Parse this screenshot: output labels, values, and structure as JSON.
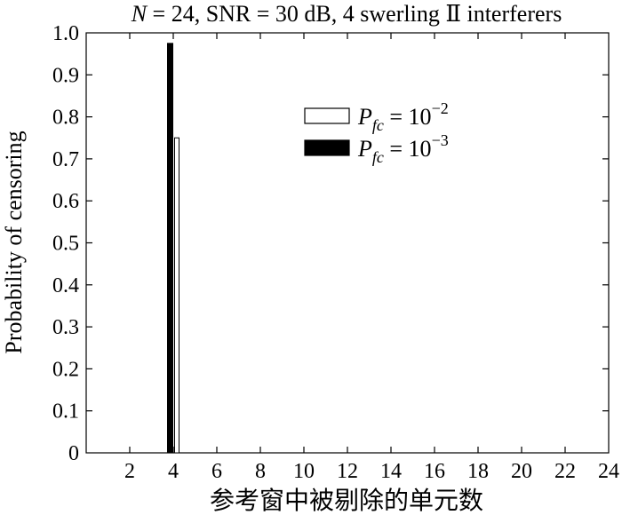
{
  "chart_data": {
    "type": "bar",
    "title": {
      "n_symbol": "N",
      "rest": " = 24, SNR = 30 dB, 4 swerling Ⅱ interferers"
    },
    "xlabel": "参考窗中被剔除的单元数",
    "ylabel": "Probability of censoring",
    "xlim": [
      0,
      24
    ],
    "ylim": [
      0,
      1.0
    ],
    "x_ticks": [
      2,
      4,
      6,
      8,
      10,
      12,
      14,
      16,
      18,
      20,
      22,
      24
    ],
    "y_ticks": [
      0,
      0.1,
      0.2,
      0.3,
      0.4,
      0.5,
      0.6,
      0.7,
      0.8,
      0.9,
      1.0
    ],
    "y_tick_labels": [
      "0",
      "0.1",
      "0.2",
      "0.3",
      "0.4",
      "0.5",
      "0.6",
      "0.7",
      "0.8",
      "0.9",
      "1.0"
    ],
    "legend_position": "top-right",
    "series": [
      {
        "key": "pfc2",
        "legend_exp": "−2",
        "fill": "#ffffff",
        "x": [
          4
        ],
        "values": [
          0.75
        ]
      },
      {
        "key": "pfc3",
        "legend_exp": "−3",
        "fill": "#000000",
        "x": [
          4
        ],
        "values": [
          0.975
        ]
      }
    ],
    "legend_symbol": {
      "main": "P",
      "sub": "fc",
      "eq": " = 10"
    }
  }
}
